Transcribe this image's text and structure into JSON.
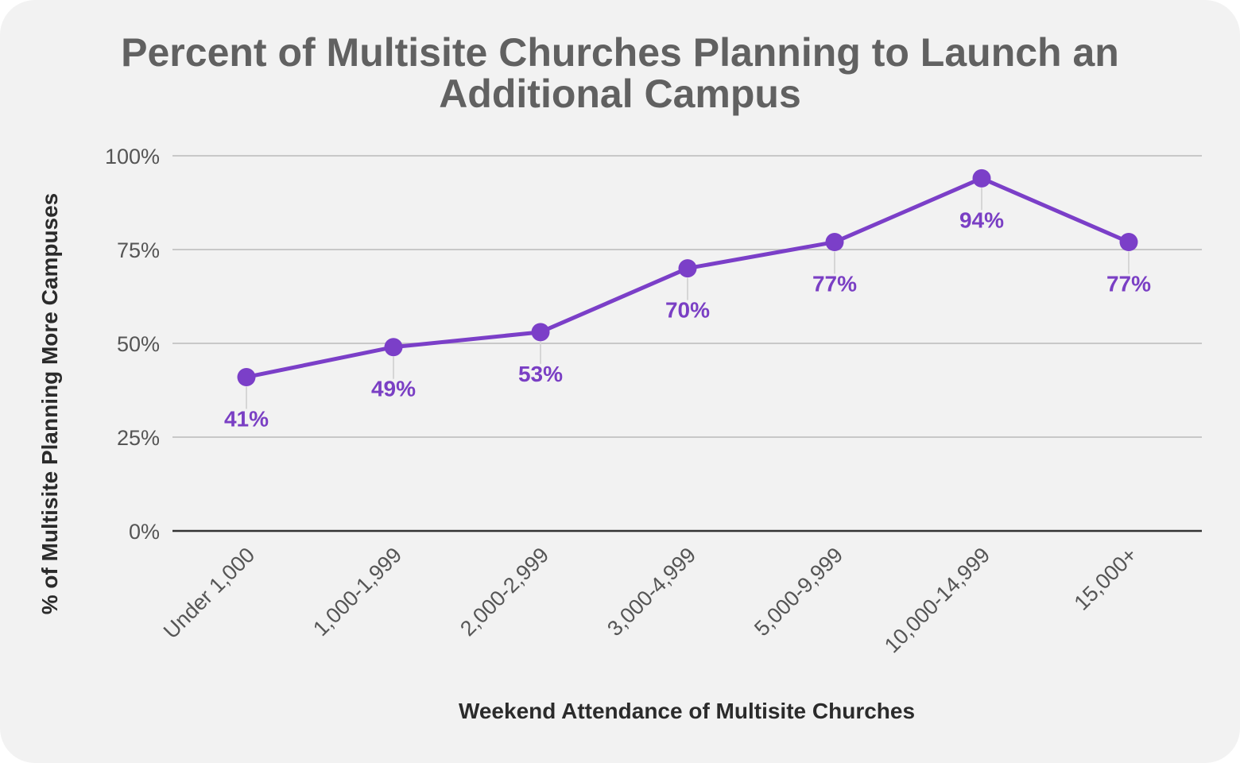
{
  "chart_data": {
    "type": "line",
    "title_lines": [
      "Percent of Multisite Churches Planning to Launch an",
      "Additional Campus"
    ],
    "xlabel": "Weekend Attendance of Multisite Churches",
    "ylabel": "% of Multisite Planning More Campuses",
    "categories": [
      "Under 1,000",
      "1,000-1,999",
      "2,000-2,999",
      "3,000-4,999",
      "5,000-9,999",
      "10,000-14,999",
      "15,000+"
    ],
    "values": [
      41,
      49,
      53,
      70,
      77,
      94,
      77
    ],
    "data_labels": [
      "41%",
      "49%",
      "53%",
      "70%",
      "77%",
      "94%",
      "77%"
    ],
    "ylim": [
      0,
      100
    ],
    "y_ticks": [
      0,
      25,
      50,
      75,
      100
    ],
    "y_tick_labels": [
      "0%",
      "25%",
      "50%",
      "75%",
      "100%"
    ],
    "grid": true,
    "legend": "none",
    "colors": {
      "line": "#7b3fc8",
      "data_label": "#7a3fc4",
      "gridline": "#c8c8c8",
      "baseline": "#333333",
      "background": "#f2f2f2",
      "title": "#616161"
    }
  }
}
